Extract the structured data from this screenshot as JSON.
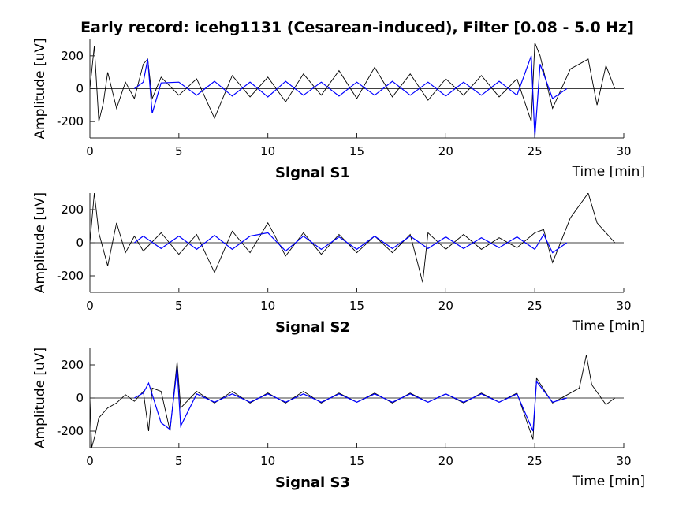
{
  "title": "Early record: icehg1131 (Cesarean-induced), Filter [0.08 - 5.0 Hz]",
  "chart_data": [
    {
      "type": "line",
      "subplot_label": "Signal S1",
      "xlabel": "Time [min]",
      "ylabel": "Amplitude [uV]",
      "xlim": [
        0,
        30
      ],
      "ylim": [
        -300,
        300
      ],
      "xticks": [
        0,
        5,
        10,
        15,
        20,
        25,
        30
      ],
      "yticks": [
        -200,
        0,
        200
      ],
      "series": [
        {
          "color": "#000000",
          "x": [
            0,
            0.25,
            0.5,
            0.75,
            1,
            1.5,
            2,
            2.5,
            3,
            3.25,
            3.5,
            4,
            5,
            6,
            7,
            8,
            9,
            10,
            11,
            12,
            13,
            14,
            15,
            16,
            17,
            18,
            19,
            20,
            21,
            22,
            23,
            24,
            24.8,
            25,
            25.3,
            26,
            27,
            27.5,
            28,
            28.5,
            29,
            29.5
          ],
          "y": [
            0,
            260,
            -200,
            -90,
            100,
            -120,
            40,
            -60,
            150,
            180,
            -60,
            70,
            -40,
            60,
            -180,
            80,
            -50,
            70,
            -80,
            90,
            -40,
            110,
            -60,
            130,
            -50,
            90,
            -70,
            60,
            -40,
            80,
            -50,
            60,
            -200,
            280,
            200,
            -120,
            120,
            150,
            180,
            -100,
            140,
            0
          ]
        },
        {
          "color": "#0000ff",
          "x": [
            2.5,
            3,
            3.25,
            3.5,
            4,
            5,
            6,
            7,
            8,
            9,
            10,
            11,
            12,
            13,
            14,
            15,
            16,
            17,
            18,
            19,
            20,
            21,
            22,
            23,
            24,
            24.8,
            25,
            25.3,
            26,
            26.8
          ],
          "y": [
            0,
            40,
            180,
            -150,
            35,
            40,
            -40,
            45,
            -45,
            40,
            -50,
            45,
            -40,
            40,
            -45,
            40,
            -40,
            45,
            -40,
            40,
            -45,
            40,
            -40,
            45,
            -40,
            200,
            -300,
            150,
            -60,
            0
          ]
        }
      ]
    },
    {
      "type": "line",
      "subplot_label": "Signal S2",
      "xlabel": "Time [min]",
      "ylabel": "Amplitude [uV]",
      "xlim": [
        0,
        30
      ],
      "ylim": [
        -300,
        300
      ],
      "xticks": [
        0,
        5,
        10,
        15,
        20,
        25,
        30
      ],
      "yticks": [
        -200,
        0,
        200
      ],
      "series": [
        {
          "color": "#000000",
          "x": [
            0,
            0.25,
            0.5,
            1,
            1.5,
            2,
            2.5,
            3,
            4,
            5,
            6,
            7,
            8,
            9,
            10,
            11,
            12,
            13,
            14,
            15,
            16,
            17,
            18,
            18.7,
            19,
            20,
            21,
            22,
            23,
            24,
            25,
            25.5,
            26,
            27,
            28,
            28.5,
            29,
            29.5
          ],
          "y": [
            0,
            300,
            60,
            -140,
            120,
            -60,
            40,
            -50,
            60,
            -70,
            50,
            -180,
            70,
            -60,
            120,
            -80,
            60,
            -70,
            50,
            -60,
            40,
            -60,
            50,
            -240,
            60,
            -40,
            50,
            -40,
            30,
            -30,
            60,
            80,
            -120,
            150,
            300,
            120,
            60,
            0
          ]
        },
        {
          "color": "#0000ff",
          "x": [
            2.5,
            3,
            4,
            5,
            6,
            7,
            8,
            9,
            10,
            11,
            12,
            13,
            14,
            15,
            16,
            17,
            18,
            19,
            20,
            21,
            22,
            23,
            24,
            25,
            25.5,
            26,
            26.8
          ],
          "y": [
            0,
            40,
            -35,
            40,
            -40,
            45,
            -40,
            40,
            60,
            -50,
            40,
            -40,
            35,
            -40,
            40,
            -35,
            40,
            -35,
            35,
            -35,
            30,
            -30,
            35,
            -40,
            50,
            -60,
            0
          ]
        }
      ]
    },
    {
      "type": "line",
      "subplot_label": "Signal S3",
      "xlabel": "Time [min]",
      "ylabel": "Amplitude [uV]",
      "xlim": [
        0,
        30
      ],
      "ylim": [
        -300,
        300
      ],
      "xticks": [
        0,
        5,
        10,
        15,
        20,
        25,
        30
      ],
      "yticks": [
        -200,
        0,
        200
      ],
      "series": [
        {
          "color": "#000000",
          "x": [
            0,
            0.1,
            0.3,
            0.5,
            1,
            1.5,
            2,
            2.5,
            3,
            3.3,
            3.5,
            4,
            4.5,
            4.9,
            5.1,
            6,
            7,
            8,
            9,
            10,
            11,
            12,
            13,
            14,
            15,
            16,
            17,
            18,
            19,
            20,
            21,
            22,
            23,
            24,
            24.9,
            25.1,
            26,
            27,
            27.5,
            27.9,
            28.2,
            29,
            29.5
          ],
          "y": [
            0,
            -300,
            -220,
            -120,
            -60,
            -30,
            20,
            -20,
            40,
            -200,
            60,
            40,
            -200,
            220,
            -60,
            40,
            -30,
            40,
            -30,
            30,
            -30,
            40,
            -30,
            30,
            -25,
            30,
            -30,
            30,
            -25,
            25,
            -30,
            30,
            -25,
            30,
            -250,
            120,
            -30,
            30,
            60,
            260,
            80,
            -40,
            0
          ]
        },
        {
          "color": "#0000ff",
          "x": [
            2.5,
            3,
            3.3,
            4,
            4.5,
            4.9,
            5.1,
            6,
            7,
            8,
            9,
            10,
            11,
            12,
            13,
            14,
            15,
            16,
            17,
            18,
            19,
            20,
            21,
            22,
            23,
            24,
            24.9,
            25.1,
            26,
            26.8
          ],
          "y": [
            0,
            30,
            90,
            -150,
            -190,
            180,
            -170,
            25,
            -25,
            25,
            -25,
            25,
            -25,
            25,
            -25,
            25,
            -25,
            25,
            -25,
            25,
            -25,
            25,
            -25,
            25,
            -25,
            25,
            -200,
            100,
            -25,
            0
          ]
        }
      ]
    }
  ]
}
